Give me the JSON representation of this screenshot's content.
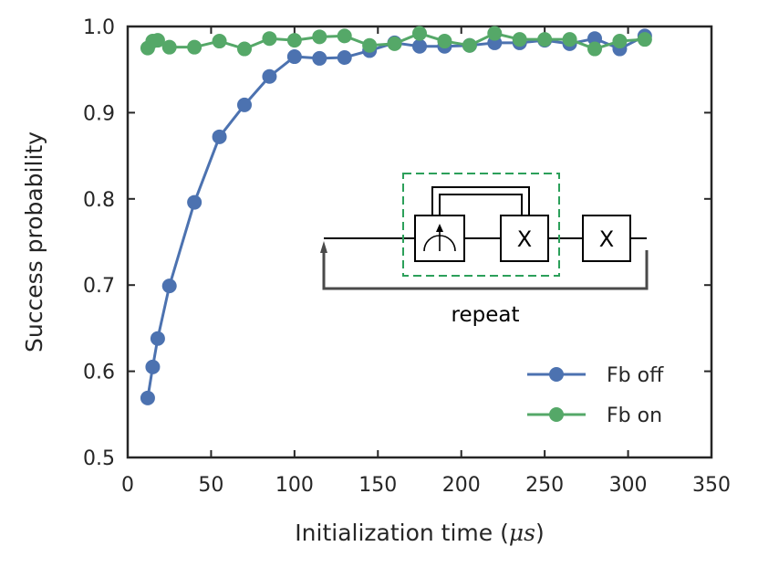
{
  "chart_data": {
    "type": "line",
    "title": "",
    "xlabel": "Initialization time",
    "xlabel_unit": "μs",
    "ylabel": "Success probability",
    "xlim": [
      0,
      350
    ],
    "ylim": [
      0.5,
      1.0
    ],
    "xticks": [
      0,
      50,
      100,
      150,
      200,
      250,
      300,
      350
    ],
    "xtick_labels": [
      "0",
      "50",
      "100",
      "150",
      "200",
      "250",
      "300",
      "350"
    ],
    "yticks": [
      0.5,
      0.6,
      0.7,
      0.8,
      0.9,
      1.0
    ],
    "ytick_labels": [
      "0.5",
      "0.6",
      "0.7",
      "0.8",
      "0.9",
      "1.0"
    ],
    "grid": false,
    "legend_position": "bottom-right",
    "series": [
      {
        "name": "Fb off",
        "color": "#4c72b0",
        "x": [
          12,
          15,
          18,
          25,
          40,
          55,
          70,
          85,
          100,
          115,
          130,
          145,
          160,
          175,
          190,
          205,
          220,
          235,
          250,
          265,
          280,
          295,
          310
        ],
        "y": [
          0.569,
          0.605,
          0.638,
          0.699,
          0.796,
          0.872,
          0.909,
          0.942,
          0.965,
          0.963,
          0.964,
          0.972,
          0.981,
          0.977,
          0.977,
          0.978,
          0.981,
          0.981,
          0.984,
          0.98,
          0.986,
          0.974,
          0.989
        ]
      },
      {
        "name": "Fb on",
        "color": "#55a868",
        "x": [
          12,
          15,
          18,
          25,
          40,
          55,
          70,
          85,
          100,
          115,
          130,
          145,
          160,
          175,
          190,
          205,
          220,
          235,
          250,
          265,
          280,
          295,
          310
        ],
        "y": [
          0.975,
          0.983,
          0.984,
          0.976,
          0.976,
          0.983,
          0.974,
          0.986,
          0.984,
          0.988,
          0.989,
          0.978,
          0.98,
          0.992,
          0.983,
          0.978,
          0.992,
          0.985,
          0.985,
          0.985,
          0.974,
          0.983,
          0.985
        ]
      }
    ],
    "inset": {
      "description": "feedback circuit diagram",
      "gate_labels": [
        "X",
        "X"
      ],
      "label": "repeat"
    }
  }
}
